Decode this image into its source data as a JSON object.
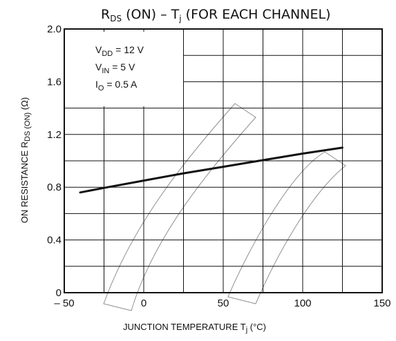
{
  "chart_data": {
    "type": "line",
    "title_main": "R",
    "title_main_sub": "DS",
    "title_rest": " (ON)  –  T",
    "title_rest_sub": "j",
    "title_tail": "  (FOR EACH CHANNEL)",
    "xlabel_main": "JUNCTION TEMPERATURE   T",
    "xlabel_sub": "j",
    "xlabel_tail": "   (°C)",
    "ylabel_main": "ON RESISTANCE   R",
    "ylabel_sub": "DS (ON)",
    "ylabel_tail": "   (Ω)",
    "xlim": [
      -50,
      150
    ],
    "ylim": [
      0,
      2.0
    ],
    "x_ticks": [
      -50,
      0,
      50,
      100,
      150
    ],
    "x_tick_labels": [
      "– 50",
      "0",
      "50",
      "100",
      "150"
    ],
    "y_ticks": [
      0,
      0.4,
      0.8,
      1.2,
      1.6,
      2.0
    ],
    "y_tick_labels": [
      "0",
      "0.4",
      "0.8",
      "1.2",
      "1.6",
      "2.0"
    ],
    "grid": true,
    "series": [
      {
        "x": [
          -40,
          -25,
          0,
          25,
          50,
          75,
          100,
          125
        ],
        "y": [
          0.76,
          0.795,
          0.85,
          0.905,
          0.955,
          1.005,
          1.055,
          1.1
        ]
      }
    ],
    "conditions": [
      {
        "main": "V",
        "sub": "DD",
        "rest": " = 12 V"
      },
      {
        "main": "V",
        "sub": "IN",
        "rest": " = 5 V"
      },
      {
        "main": "I",
        "sub": "O",
        "rest": " = 0.5 A"
      }
    ]
  }
}
